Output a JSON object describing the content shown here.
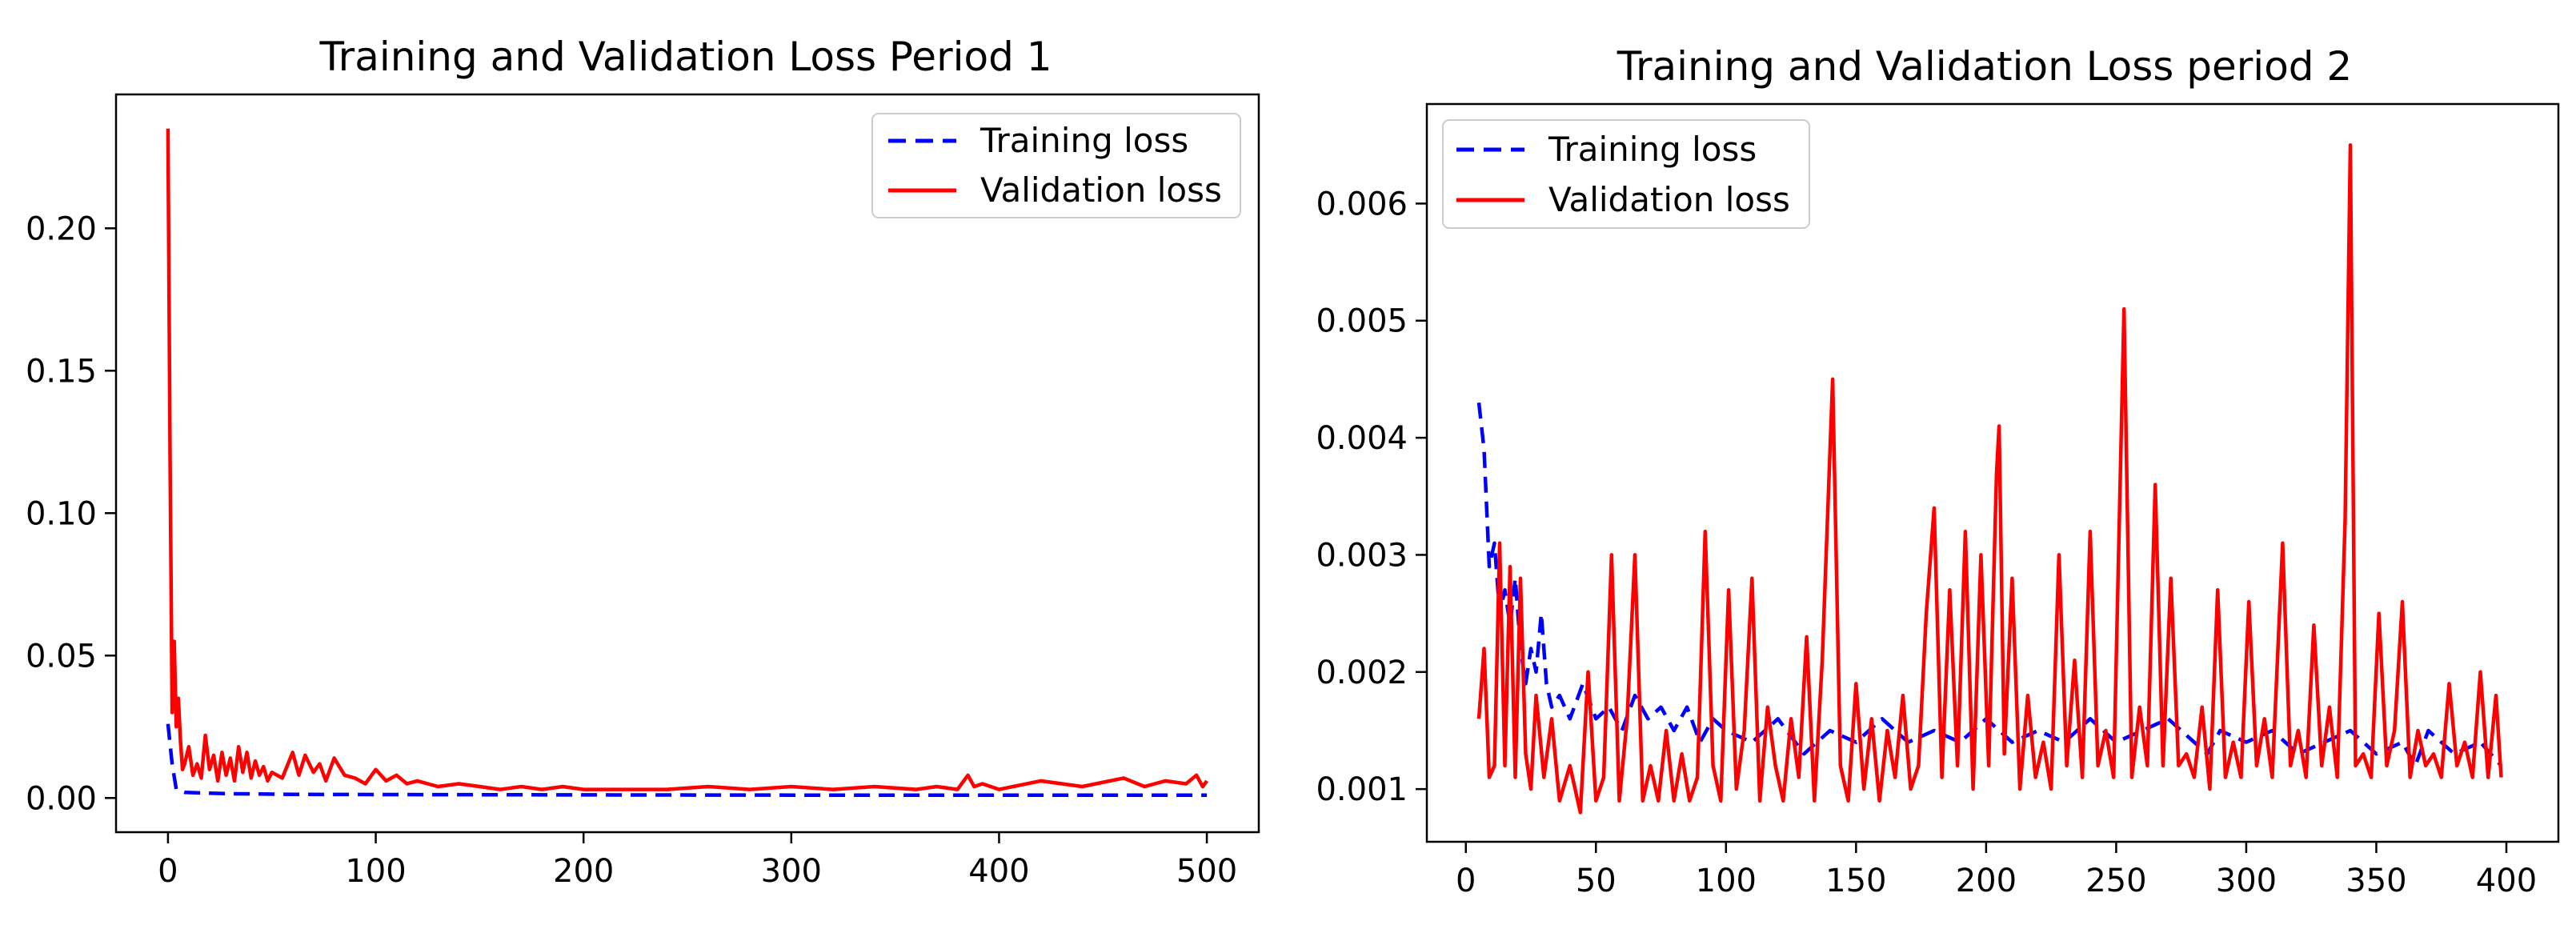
{
  "chart_data": [
    {
      "type": "line",
      "title": "Training and Validation Loss Period 1",
      "xlabel": "",
      "ylabel": "",
      "xlim": [
        -25,
        525
      ],
      "ylim": [
        -0.012,
        0.247
      ],
      "xticks": [
        0,
        100,
        200,
        300,
        400,
        500
      ],
      "xtick_labels": [
        "0",
        "100",
        "200",
        "300",
        "400",
        "500"
      ],
      "yticks": [
        0.0,
        0.05,
        0.1,
        0.15,
        0.2
      ],
      "ytick_labels": [
        "0.00",
        "0.05",
        "0.10",
        "0.15",
        "0.20"
      ],
      "grid": false,
      "legend_position": "top-right",
      "series": [
        {
          "name": "Training loss",
          "color": "#0000ff",
          "style": "dashed",
          "x": [
            0,
            2,
            4,
            8,
            15,
            30,
            60,
            100,
            200,
            300,
            400,
            500
          ],
          "y": [
            0.026,
            0.012,
            0.003,
            0.002,
            0.0018,
            0.0015,
            0.0013,
            0.0012,
            0.0011,
            0.001,
            0.001,
            0.001
          ]
        },
        {
          "name": "Validation loss",
          "color": "#ff0000",
          "style": "solid",
          "x": [
            0,
            1,
            2,
            3,
            4,
            5,
            6,
            7,
            8,
            10,
            12,
            14,
            16,
            18,
            20,
            22,
            24,
            26,
            28,
            30,
            32,
            34,
            36,
            38,
            40,
            42,
            44,
            46,
            48,
            50,
            55,
            60,
            63,
            66,
            70,
            73,
            76,
            80,
            85,
            90,
            95,
            100,
            105,
            110,
            115,
            120,
            130,
            140,
            150,
            160,
            170,
            180,
            190,
            200,
            220,
            240,
            260,
            280,
            300,
            320,
            340,
            360,
            370,
            380,
            385,
            388,
            392,
            400,
            420,
            440,
            460,
            470,
            480,
            490,
            495,
            498,
            500
          ],
          "y": [
            0.235,
            0.12,
            0.03,
            0.055,
            0.025,
            0.035,
            0.02,
            0.01,
            0.012,
            0.018,
            0.008,
            0.012,
            0.007,
            0.022,
            0.01,
            0.015,
            0.006,
            0.016,
            0.008,
            0.014,
            0.006,
            0.018,
            0.009,
            0.016,
            0.007,
            0.013,
            0.008,
            0.011,
            0.006,
            0.009,
            0.007,
            0.016,
            0.008,
            0.015,
            0.009,
            0.012,
            0.006,
            0.014,
            0.008,
            0.007,
            0.005,
            0.01,
            0.006,
            0.008,
            0.005,
            0.006,
            0.004,
            0.005,
            0.004,
            0.003,
            0.004,
            0.003,
            0.004,
            0.003,
            0.003,
            0.003,
            0.004,
            0.003,
            0.004,
            0.003,
            0.004,
            0.003,
            0.004,
            0.003,
            0.008,
            0.004,
            0.005,
            0.003,
            0.006,
            0.004,
            0.007,
            0.004,
            0.006,
            0.005,
            0.008,
            0.004,
            0.006
          ]
        }
      ]
    },
    {
      "type": "line",
      "title": "Training and Validation Loss period 2",
      "xlabel": "",
      "ylabel": "",
      "xlim": [
        -15,
        420
      ],
      "ylim": [
        0.00055,
        0.00685
      ],
      "xticks": [
        0,
        50,
        100,
        150,
        200,
        250,
        300,
        350,
        400
      ],
      "xtick_labels": [
        "0",
        "50",
        "100",
        "150",
        "200",
        "250",
        "300",
        "350",
        "400"
      ],
      "yticks": [
        0.001,
        0.002,
        0.003,
        0.004,
        0.005,
        0.006
      ],
      "ytick_labels": [
        "0.001",
        "0.002",
        "0.003",
        "0.004",
        "0.005",
        "0.006"
      ],
      "grid": false,
      "legend_position": "top-left",
      "series": [
        {
          "name": "Training loss",
          "color": "#0000ff",
          "style": "dashed",
          "x": [
            5,
            7,
            9,
            11,
            13,
            15,
            17,
            19,
            21,
            23,
            25,
            27,
            29,
            31,
            33,
            36,
            40,
            45,
            50,
            55,
            60,
            65,
            70,
            75,
            80,
            85,
            90,
            95,
            100,
            110,
            120,
            130,
            140,
            150,
            160,
            170,
            180,
            190,
            200,
            210,
            220,
            230,
            240,
            250,
            260,
            270,
            280,
            285,
            290,
            300,
            310,
            320,
            330,
            340,
            350,
            360,
            365,
            370,
            380,
            390,
            398
          ],
          "y": [
            0.0043,
            0.0039,
            0.0029,
            0.0031,
            0.0025,
            0.0027,
            0.0024,
            0.0028,
            0.0022,
            0.0019,
            0.0022,
            0.002,
            0.0025,
            0.0019,
            0.0017,
            0.0018,
            0.0016,
            0.0019,
            0.0016,
            0.0017,
            0.0015,
            0.0018,
            0.0016,
            0.0017,
            0.0015,
            0.0017,
            0.0014,
            0.0016,
            0.0015,
            0.0014,
            0.0016,
            0.0013,
            0.0015,
            0.0014,
            0.0016,
            0.0014,
            0.0015,
            0.0014,
            0.0016,
            0.0014,
            0.0015,
            0.0014,
            0.0016,
            0.0014,
            0.0015,
            0.0016,
            0.0014,
            0.0013,
            0.0015,
            0.0014,
            0.0015,
            0.0013,
            0.0014,
            0.0015,
            0.0013,
            0.0014,
            0.0012,
            0.0015,
            0.0013,
            0.0014,
            0.0012
          ]
        },
        {
          "name": "Validation loss",
          "color": "#ff0000",
          "style": "solid",
          "x": [
            5,
            7,
            9,
            11,
            13,
            15,
            17,
            19,
            21,
            23,
            25,
            27,
            30,
            33,
            36,
            40,
            44,
            47,
            50,
            53,
            56,
            59,
            62,
            65,
            68,
            71,
            74,
            77,
            80,
            83,
            86,
            89,
            92,
            95,
            98,
            101,
            104,
            107,
            110,
            113,
            116,
            119,
            122,
            125,
            128,
            131,
            134,
            137,
            141,
            144,
            147,
            150,
            153,
            156,
            159,
            162,
            165,
            168,
            171,
            174,
            177,
            180,
            183,
            186,
            189,
            192,
            195,
            198,
            201,
            204,
            205,
            207,
            210,
            213,
            216,
            219,
            222,
            225,
            228,
            231,
            234,
            237,
            240,
            243,
            246,
            249,
            253,
            256,
            259,
            262,
            265,
            268,
            271,
            274,
            277,
            280,
            283,
            286,
            289,
            292,
            295,
            298,
            301,
            304,
            307,
            310,
            314,
            317,
            320,
            323,
            326,
            329,
            332,
            335,
            338,
            340,
            342,
            345,
            348,
            351,
            354,
            357,
            360,
            363,
            366,
            369,
            372,
            375,
            378,
            381,
            384,
            387,
            390,
            393,
            396,
            398
          ],
          "y": [
            0.0016,
            0.0022,
            0.0011,
            0.0012,
            0.0031,
            0.0012,
            0.0029,
            0.0011,
            0.0028,
            0.0013,
            0.001,
            0.0018,
            0.0011,
            0.0016,
            0.0009,
            0.0012,
            0.0008,
            0.002,
            0.0009,
            0.0011,
            0.003,
            0.0009,
            0.0016,
            0.003,
            0.0009,
            0.0012,
            0.0009,
            0.0015,
            0.0009,
            0.0013,
            0.0009,
            0.0011,
            0.0032,
            0.0012,
            0.0009,
            0.0027,
            0.001,
            0.0015,
            0.0028,
            0.0009,
            0.0017,
            0.0012,
            0.0009,
            0.0016,
            0.0011,
            0.0023,
            0.0009,
            0.0021,
            0.0045,
            0.0012,
            0.0009,
            0.0019,
            0.001,
            0.0016,
            0.0009,
            0.0015,
            0.0011,
            0.0018,
            0.001,
            0.0012,
            0.0025,
            0.0034,
            0.0011,
            0.0027,
            0.0012,
            0.0032,
            0.001,
            0.003,
            0.0012,
            0.0037,
            0.0041,
            0.0013,
            0.0028,
            0.001,
            0.0018,
            0.0011,
            0.0014,
            0.001,
            0.003,
            0.0012,
            0.0021,
            0.0011,
            0.0032,
            0.0012,
            0.0015,
            0.0011,
            0.0051,
            0.0011,
            0.0017,
            0.0012,
            0.0036,
            0.0012,
            0.0028,
            0.0012,
            0.0013,
            0.0011,
            0.0017,
            0.001,
            0.0027,
            0.0011,
            0.0014,
            0.0011,
            0.0026,
            0.0012,
            0.0016,
            0.0011,
            0.0031,
            0.0012,
            0.0015,
            0.0011,
            0.0024,
            0.0012,
            0.0017,
            0.0011,
            0.0033,
            0.0065,
            0.0012,
            0.0013,
            0.0011,
            0.0025,
            0.0012,
            0.0015,
            0.0026,
            0.0011,
            0.0015,
            0.0012,
            0.0013,
            0.0011,
            0.0019,
            0.0012,
            0.0014,
            0.0011,
            0.002,
            0.0011,
            0.0018,
            0.0011
          ]
        }
      ]
    }
  ]
}
